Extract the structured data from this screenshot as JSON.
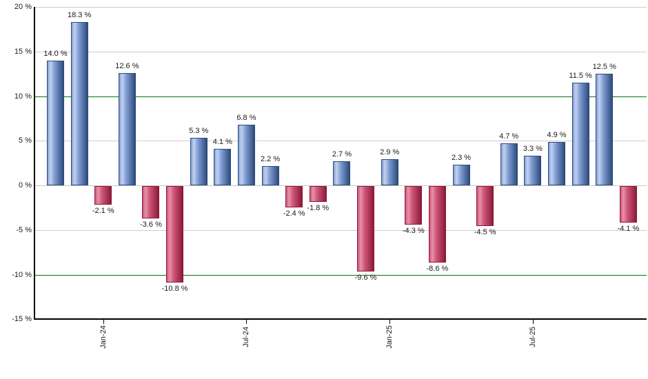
{
  "page": {
    "background": "#ffffff"
  },
  "chart_data": {
    "type": "bar",
    "unit": "%",
    "values": [
      14.0,
      18.3,
      -2.1,
      12.6,
      -3.6,
      -10.8,
      5.3,
      4.1,
      6.8,
      2.2,
      -2.4,
      -1.8,
      2.7,
      -9.6,
      2.9,
      -4.3,
      -8.6,
      2.3,
      -4.5,
      4.7,
      3.3,
      4.9,
      11.5,
      12.5,
      -4.1
    ],
    "bar_labels": [
      "14.0 %",
      "18.3 %",
      "-2.1 %",
      "12.6 %",
      "-3.6 %",
      "-10.8 %",
      "5.3 %",
      "4.1 %",
      "6.8 %",
      "2.2 %",
      "-2.4 %",
      "-1.8 %",
      "2.7 %",
      "-9.6 %",
      "2.9 %",
      "-4.3 %",
      "-8.6 %",
      "2.3 %",
      "-4.5 %",
      "4.7 %",
      "3.3 %",
      "4.9 %",
      "11.5 %",
      "12.5 %",
      "-4.1 %"
    ],
    "x_ticks": [
      {
        "bar_index": 2,
        "label": "Jan-24"
      },
      {
        "bar_index": 8,
        "label": "Jul-24"
      },
      {
        "bar_index": 14,
        "label": "Jan-25"
      },
      {
        "bar_index": 20,
        "label": "Jul-25"
      }
    ],
    "y_ticks": [
      {
        "value": 20,
        "label": "20 %"
      },
      {
        "value": 15,
        "label": "15 %"
      },
      {
        "value": 10,
        "label": "10 %"
      },
      {
        "value": 5,
        "label": "5 %"
      },
      {
        "value": 0,
        "label": "0 %"
      },
      {
        "value": -5,
        "label": "-5 %"
      },
      {
        "value": -10,
        "label": "-10 %"
      },
      {
        "value": -15,
        "label": "-15 %"
      }
    ],
    "ylim": [
      -15,
      20
    ],
    "grid": true,
    "legend": false,
    "reference_lines": [
      10,
      -10
    ],
    "colors": {
      "positive_bar_light": "#c3d2ee",
      "positive_bar_main": "#7e9cd3",
      "positive_bar_dark": "#2d4b7b",
      "negative_bar_light": "#e891a7",
      "negative_bar_main": "#cc5377",
      "negative_bar_dark": "#8c1a3a",
      "grid_line": "#cdcdcd",
      "zero_line": "#c6c6c6",
      "reference_line": "#007500",
      "axis_line": "#000000",
      "label_text": "#1a1a1a"
    }
  }
}
